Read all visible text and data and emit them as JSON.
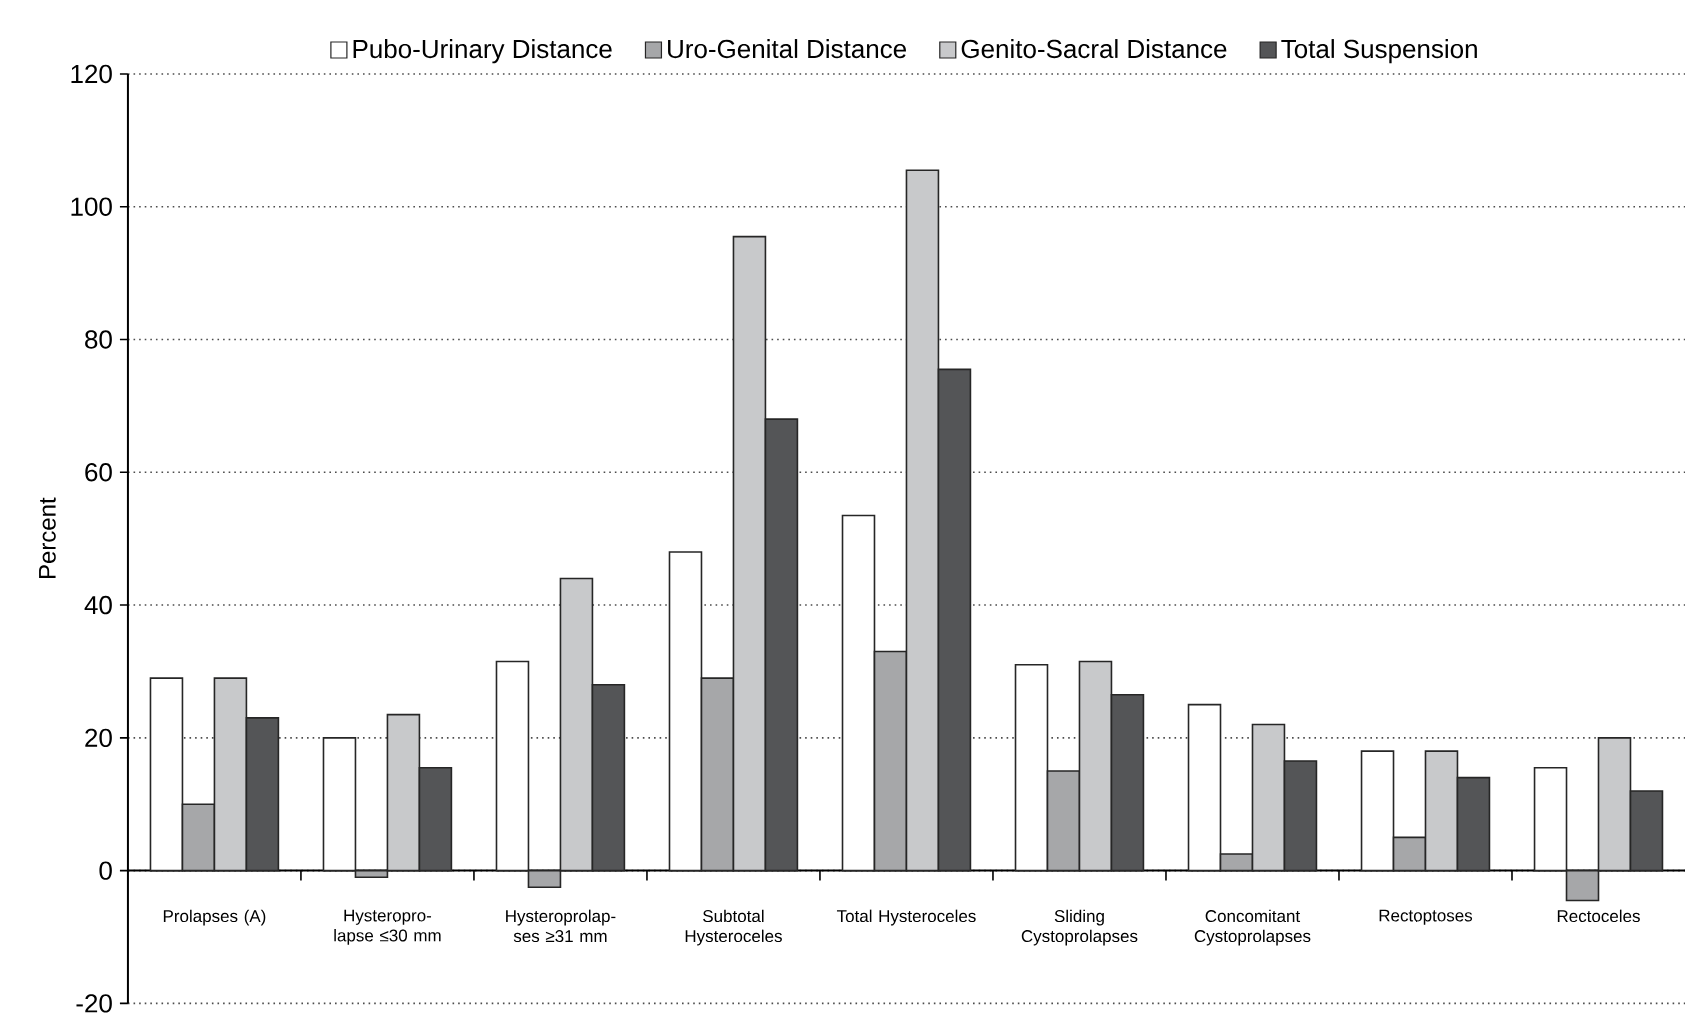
{
  "chart_data": {
    "type": "bar",
    "ylabel": "Percent",
    "categories": [
      "Prolapses (A)",
      "Hysteropro- lapse ≤30 mm",
      "Hysteroprolap- ses ≥31 mm",
      "Subtotal Hysteroceles",
      "Total Hysteroceles",
      "Sliding Cystoprolapses",
      "Concomitant Cystoprolapses",
      "Rectoptoses",
      "Rectoceles"
    ],
    "series": [
      {
        "name": "Pubo-Urinary Distance",
        "color": "#ffffff",
        "values": [
          29,
          20,
          31.5,
          48,
          53.5,
          31,
          25,
          18,
          15.5
        ]
      },
      {
        "name": "Uro-Genital Distance",
        "color": "#a6a7a9",
        "values": [
          10,
          -1,
          -2.5,
          29,
          33,
          15,
          2.5,
          5,
          -4.5
        ]
      },
      {
        "name": "Genito-Sacral Distance",
        "color": "#c8c9cb",
        "values": [
          29,
          23.5,
          44,
          95.5,
          105.5,
          31.5,
          22,
          18,
          20
        ]
      },
      {
        "name": "Total Suspension",
        "color": "#545557",
        "values": [
          23,
          15.5,
          28,
          68,
          75.5,
          26.5,
          16.5,
          14,
          12
        ]
      }
    ],
    "ylim": [
      -20,
      120
    ],
    "yticks": [
      -20,
      0,
      20,
      40,
      60,
      80,
      100,
      120
    ],
    "grid": "y",
    "legend": "top"
  }
}
